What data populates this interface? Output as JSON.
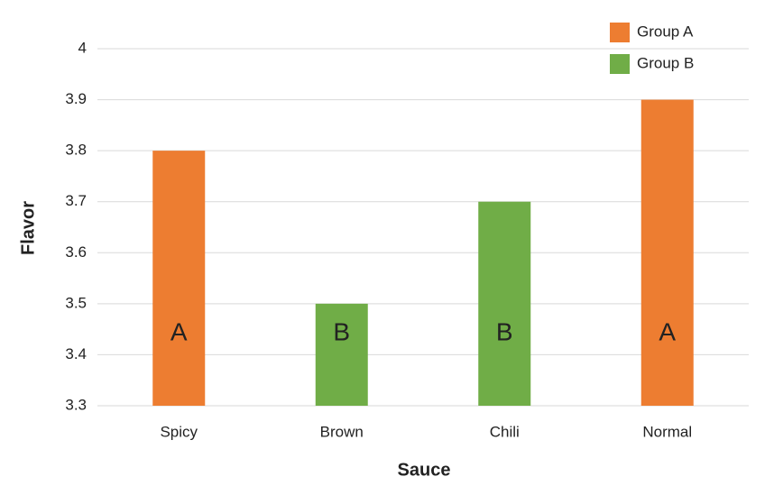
{
  "chart_data": {
    "type": "bar",
    "x_label": "Sauce",
    "y_label": "Flavor",
    "categories": [
      "Spicy",
      "Brown",
      "Chili",
      "Normal"
    ],
    "series": [
      {
        "name": "Group A",
        "color": "#ed7d31",
        "values": [
          3.8,
          null,
          null,
          3.9
        ]
      },
      {
        "name": "Group B",
        "color": "#70ad47",
        "values": [
          null,
          3.5,
          3.7,
          null
        ]
      }
    ],
    "letters": [
      "A",
      "B",
      "B",
      "A"
    ],
    "ylim": [
      3.3,
      4
    ],
    "yticks": [
      3.3,
      3.4,
      3.5,
      3.6,
      3.7,
      3.8,
      3.9,
      4
    ],
    "grid": true,
    "legend": "top-right"
  }
}
